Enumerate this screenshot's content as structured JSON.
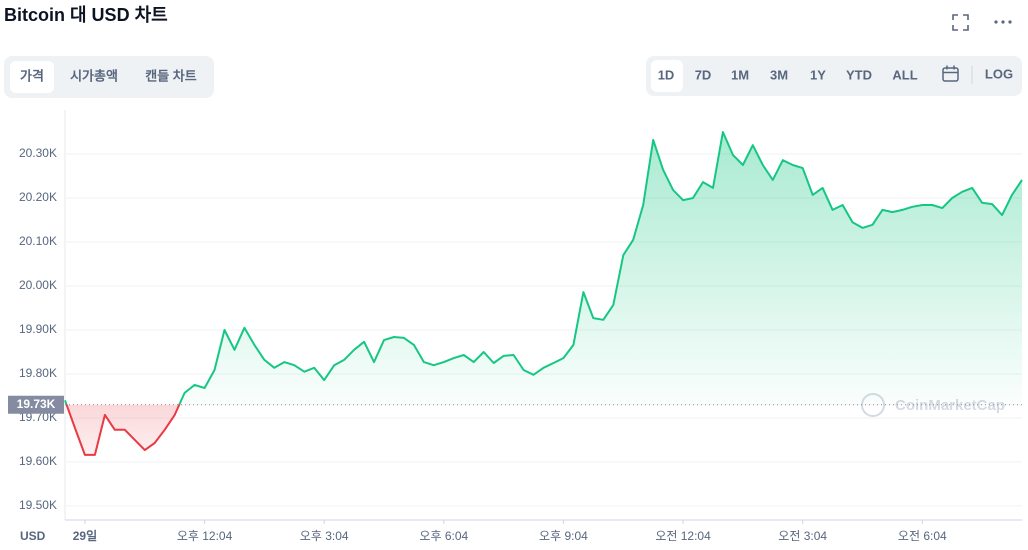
{
  "header": {
    "title": "Bitcoin 대 USD 차트"
  },
  "tabs": [
    "가격",
    "시가총액",
    "캔들 차트"
  ],
  "ranges": [
    "1D",
    "7D",
    "1M",
    "3M",
    "1Y",
    "YTD",
    "ALL"
  ],
  "log_button": "LOG",
  "chart_data": {
    "type": "line",
    "categories": [
      null,
      null,
      "29일",
      null,
      null,
      null,
      null,
      null,
      null,
      null,
      null,
      null,
      null,
      null,
      "오후 12:04",
      null,
      null,
      null,
      null,
      null,
      null,
      null,
      null,
      null,
      null,
      null,
      "오후 3:04",
      null,
      null,
      null,
      null,
      null,
      null,
      null,
      null,
      null,
      null,
      null,
      "오후 6:04",
      null,
      null,
      null,
      null,
      null,
      null,
      null,
      null,
      null,
      null,
      null,
      "오후 9:04",
      null,
      null,
      null,
      null,
      null,
      null,
      null,
      null,
      null,
      null,
      null,
      "오전 12:04",
      null,
      null,
      null,
      null,
      null,
      null,
      null,
      null,
      null,
      null,
      null,
      "오전 3:04",
      null,
      null,
      null,
      null,
      null,
      null,
      null,
      null,
      null,
      null,
      null,
      "오전 6:04",
      null,
      null,
      null,
      null,
      null,
      null,
      null,
      null,
      null,
      null
    ],
    "values": [
      19.74,
      19.677,
      19.616,
      19.616,
      19.707,
      19.673,
      19.673,
      19.65,
      19.627,
      19.643,
      19.673,
      19.707,
      19.757,
      19.775,
      19.768,
      19.809,
      19.9,
      19.855,
      19.905,
      19.866,
      19.832,
      19.814,
      19.827,
      19.82,
      19.805,
      19.814,
      19.786,
      19.82,
      19.832,
      19.855,
      19.873,
      19.827,
      19.877,
      19.884,
      19.882,
      19.866,
      19.827,
      19.82,
      19.827,
      19.836,
      19.843,
      19.827,
      19.85,
      19.825,
      19.841,
      19.843,
      19.809,
      19.798,
      19.814,
      19.825,
      19.836,
      19.866,
      19.986,
      19.927,
      19.923,
      19.957,
      20.07,
      20.105,
      20.184,
      20.332,
      20.264,
      20.218,
      20.195,
      20.2,
      20.236,
      20.223,
      20.35,
      20.298,
      20.275,
      20.32,
      20.275,
      20.241,
      20.286,
      20.275,
      20.268,
      20.207,
      20.223,
      20.173,
      20.184,
      20.145,
      20.132,
      20.139,
      20.173,
      20.168,
      20.173,
      20.18,
      20.184,
      20.184,
      20.177,
      20.2,
      20.214,
      20.223,
      20.189,
      20.186,
      20.161,
      20.207,
      20.241
    ],
    "up_color": "#16c784",
    "down_color": "#ea3943",
    "reference": {
      "value": 19.73,
      "label": "19.73K"
    },
    "ylim": [
      19.468,
      20.4
    ],
    "yticks": [
      {
        "value": 19.5,
        "label": "19.50K"
      },
      {
        "value": 19.6,
        "label": "19.60K"
      },
      {
        "value": 19.7,
        "label": "19.70K"
      },
      {
        "value": 19.8,
        "label": "19.80K"
      },
      {
        "value": 19.9,
        "label": "19.90K"
      },
      {
        "value": 20.0,
        "label": "20.00K"
      },
      {
        "value": 20.1,
        "label": "20.10K"
      },
      {
        "value": 20.2,
        "label": "20.20K"
      },
      {
        "value": 20.3,
        "label": "20.30K"
      }
    ],
    "y_unit": "USD",
    "grid": true,
    "log_scale": false,
    "watermark": "CoinMarketCap"
  }
}
